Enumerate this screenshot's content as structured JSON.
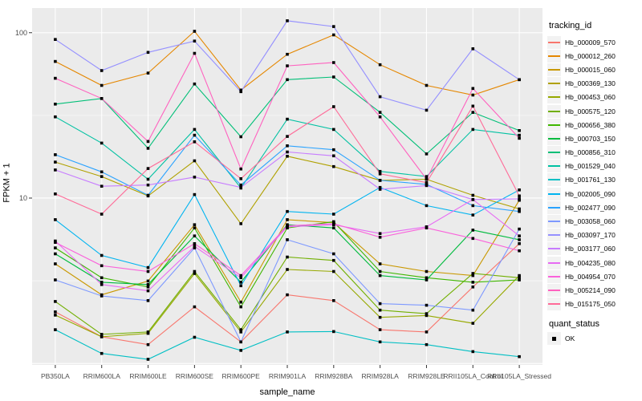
{
  "figure": {
    "panel_bg": "#EBEBEB",
    "grid_color": "#FFFFFF",
    "tick_color": "#333333",
    "tick_label_color": "#4D4D4D",
    "legend_key_bg": "#F2F2F2",
    "marker_color": "#000000"
  },
  "chart_data": {
    "type": "line",
    "title": "",
    "xlabel": "sample_name",
    "ylabel": "FPKM + 1",
    "y_scale": "log10",
    "ylim": [
      0.98,
      141
    ],
    "y_major": [
      1,
      10,
      100
    ],
    "y_minor": [
      3.162,
      31.62
    ],
    "y_ticks": [
      {
        "value": 10,
        "label": "10"
      },
      {
        "value": 100,
        "label": "100"
      }
    ],
    "grid": true,
    "legend_position": "right",
    "legend_title": "tracking_id",
    "legend2_title": "quant_status",
    "legend2_items": [
      {
        "label": "OK",
        "marker": "black-square"
      }
    ],
    "marker": "square",
    "categories": [
      "PB350LA",
      "RRIM600LA",
      "RRIM600LE",
      "RRIM600SE",
      "RRIM600PE",
      "RRIM901LA",
      "RRIM928BA",
      "RRIM928LA",
      "RRIM928LE",
      "RRII105LA_Control",
      "RRII105LA_Stressed"
    ],
    "series": [
      {
        "name": "Hb_000009_570",
        "color": "#F8766D",
        "values": [
          2.05,
          1.45,
          1.3,
          2.2,
          1.35,
          2.6,
          2.4,
          1.6,
          1.55,
          2.9,
          5.3
        ]
      },
      {
        "name": "Hb_000012_260",
        "color": "#E58700",
        "values": [
          67,
          48,
          57,
          102,
          45,
          74,
          97,
          64,
          48,
          42,
          52
        ]
      },
      {
        "name": "Hb_000015_060",
        "color": "#C99800",
        "values": [
          4.0,
          2.6,
          3.15,
          6.9,
          2.35,
          7.4,
          7.1,
          4.0,
          3.6,
          3.4,
          9.7
        ]
      },
      {
        "name": "Hb_000369_130",
        "color": "#B0A100",
        "values": [
          16.5,
          13.5,
          10.3,
          16.8,
          7.0,
          17.9,
          15.5,
          12.8,
          13.0,
          10.4,
          8.6
        ]
      },
      {
        "name": "Hb_000453_060",
        "color": "#97A900",
        "values": [
          1.96,
          1.45,
          1.52,
          3.5,
          1.55,
          3.7,
          3.6,
          1.9,
          1.95,
          1.75,
          3.4
        ]
      },
      {
        "name": "Hb_000575_120",
        "color": "#71AF00",
        "values": [
          2.37,
          1.5,
          1.55,
          3.6,
          1.6,
          4.4,
          4.2,
          2.1,
          2.0,
          3.5,
          3.3
        ]
      },
      {
        "name": "Hb_000656_380",
        "color": "#3FB600",
        "values": [
          5.0,
          3.3,
          2.9,
          6.6,
          2.2,
          6.6,
          7.2,
          3.6,
          3.3,
          3.1,
          3.2
        ]
      },
      {
        "name": "Hb_000703_150",
        "color": "#00BB3E",
        "values": [
          4.6,
          3.1,
          3.0,
          5.9,
          3.1,
          6.9,
          6.6,
          3.4,
          3.2,
          6.4,
          5.6
        ]
      },
      {
        "name": "Hb_000856_310",
        "color": "#00BF77",
        "values": [
          37,
          40,
          20,
          49,
          23.5,
          52,
          54,
          33,
          18.5,
          33,
          25.6
        ]
      },
      {
        "name": "Hb_001529_040",
        "color": "#00C1A2",
        "values": [
          31,
          21.5,
          13.0,
          26.0,
          11.5,
          30.0,
          26.0,
          14.5,
          13.5,
          26.0,
          24.0
        ]
      },
      {
        "name": "Hb_001761_130",
        "color": "#00BFC4",
        "values": [
          1.6,
          1.15,
          1.06,
          1.44,
          1.2,
          1.55,
          1.56,
          1.35,
          1.3,
          1.18,
          1.1
        ]
      },
      {
        "name": "Hb_002005_090",
        "color": "#00B4F0",
        "values": [
          7.4,
          4.5,
          3.8,
          10.5,
          2.95,
          8.3,
          8.0,
          11.6,
          9.0,
          7.9,
          11.2
        ]
      },
      {
        "name": "Hb_002477_090",
        "color": "#2BA3FF",
        "values": [
          18.3,
          14.4,
          10.4,
          24.0,
          12.0,
          20.7,
          19.6,
          12.8,
          12.1,
          9.0,
          8.3
        ]
      },
      {
        "name": "Hb_003058_060",
        "color": "#7E99FF",
        "values": [
          3.2,
          2.56,
          2.4,
          5.0,
          1.35,
          5.6,
          4.6,
          2.3,
          2.25,
          2.1,
          6.5
        ]
      },
      {
        "name": "Hb_003097_170",
        "color": "#9590FF",
        "values": [
          91,
          59,
          76,
          89,
          44,
          118,
          109,
          41,
          34,
          80,
          52
        ]
      },
      {
        "name": "Hb_003177_060",
        "color": "#C77CFF",
        "values": [
          14.8,
          11.8,
          12.0,
          13.4,
          11.6,
          19.0,
          18.0,
          11.3,
          11.9,
          9.8,
          9.9
        ]
      },
      {
        "name": "Hb_004235_080",
        "color": "#E76BF3",
        "values": [
          5.5,
          3.0,
          2.75,
          5.1,
          3.3,
          6.7,
          6.9,
          6.1,
          6.7,
          9.8,
          5.9
        ]
      },
      {
        "name": "Hb_004954_070",
        "color": "#FA62DB",
        "values": [
          5.4,
          3.9,
          3.6,
          5.3,
          3.4,
          6.8,
          7.0,
          5.8,
          6.6,
          5.7,
          4.8
        ]
      },
      {
        "name": "Hb_005214_090",
        "color": "#FF61BF",
        "values": [
          53,
          40,
          22,
          75,
          15,
          63,
          66,
          31,
          13,
          46,
          23
        ]
      },
      {
        "name": "Hb_015175_050",
        "color": "#FF6A98",
        "values": [
          10.6,
          8.0,
          15.1,
          21.9,
          13.1,
          23.6,
          35.7,
          14.0,
          12.4,
          36.0,
          10.3
        ]
      }
    ]
  }
}
